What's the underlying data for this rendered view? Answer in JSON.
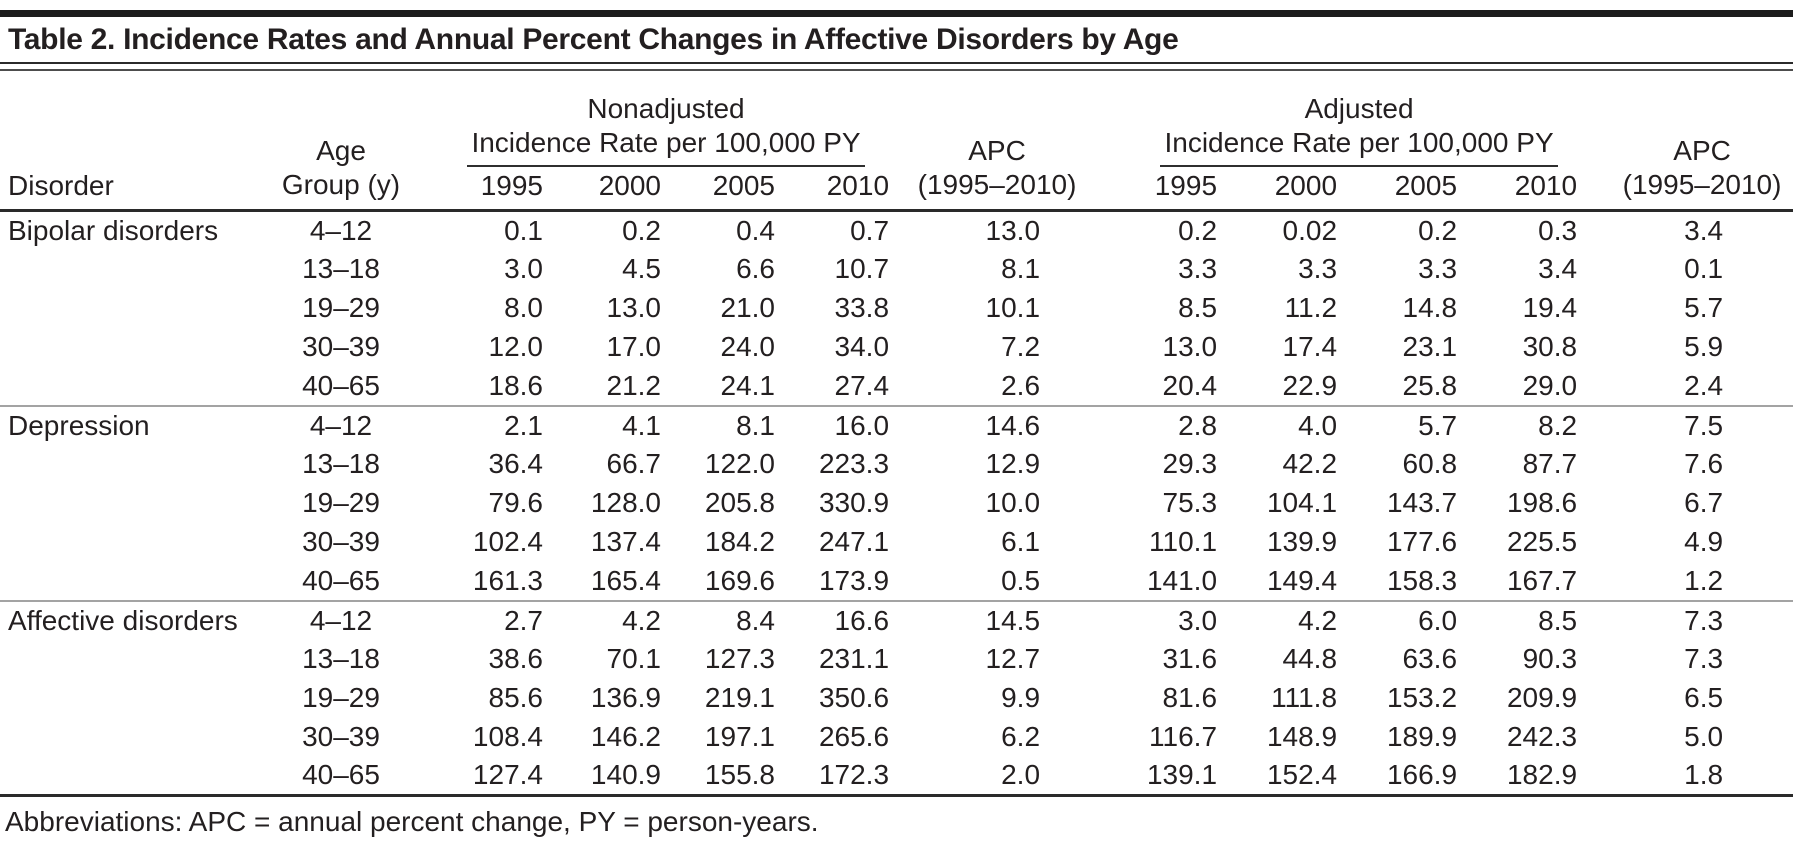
{
  "title": "Table 2. Incidence Rates and Annual Percent Changes in Affective Disorders by Age",
  "table": {
    "col_headers": {
      "disorder": "Disorder",
      "age_group_line1": "Age",
      "age_group_line2": "Group (y)",
      "nonadjusted_group_line1": "Nonadjusted",
      "nonadjusted_group_line2": "Incidence Rate per 100,000 PY",
      "adjusted_group_line1": "Adjusted",
      "adjusted_group_line2": "Incidence Rate per 100,000 PY",
      "apc_line1": "APC",
      "apc_line2": "(1995–2010)",
      "years": [
        "1995",
        "2000",
        "2005",
        "2010"
      ]
    },
    "groups": [
      {
        "disorder": "Bipolar disorders",
        "rows": [
          {
            "age": "4–12",
            "nonadjusted": [
              "0.1",
              "0.2",
              "0.4",
              "0.7"
            ],
            "apc_nonadjusted": "13.0",
            "adjusted": [
              "0.2",
              "0.02",
              "0.2",
              "0.3"
            ],
            "apc_adjusted": "3.4"
          },
          {
            "age": "13–18",
            "nonadjusted": [
              "3.0",
              "4.5",
              "6.6",
              "10.7"
            ],
            "apc_nonadjusted": "8.1",
            "adjusted": [
              "3.3",
              "3.3",
              "3.3",
              "3.4"
            ],
            "apc_adjusted": "0.1"
          },
          {
            "age": "19–29",
            "nonadjusted": [
              "8.0",
              "13.0",
              "21.0",
              "33.8"
            ],
            "apc_nonadjusted": "10.1",
            "adjusted": [
              "8.5",
              "11.2",
              "14.8",
              "19.4"
            ],
            "apc_adjusted": "5.7"
          },
          {
            "age": "30–39",
            "nonadjusted": [
              "12.0",
              "17.0",
              "24.0",
              "34.0"
            ],
            "apc_nonadjusted": "7.2",
            "adjusted": [
              "13.0",
              "17.4",
              "23.1",
              "30.8"
            ],
            "apc_adjusted": "5.9"
          },
          {
            "age": "40–65",
            "nonadjusted": [
              "18.6",
              "21.2",
              "24.1",
              "27.4"
            ],
            "apc_nonadjusted": "2.6",
            "adjusted": [
              "20.4",
              "22.9",
              "25.8",
              "29.0"
            ],
            "apc_adjusted": "2.4"
          }
        ]
      },
      {
        "disorder": "Depression",
        "rows": [
          {
            "age": "4–12",
            "nonadjusted": [
              "2.1",
              "4.1",
              "8.1",
              "16.0"
            ],
            "apc_nonadjusted": "14.6",
            "adjusted": [
              "2.8",
              "4.0",
              "5.7",
              "8.2"
            ],
            "apc_adjusted": "7.5"
          },
          {
            "age": "13–18",
            "nonadjusted": [
              "36.4",
              "66.7",
              "122.0",
              "223.3"
            ],
            "apc_nonadjusted": "12.9",
            "adjusted": [
              "29.3",
              "42.2",
              "60.8",
              "87.7"
            ],
            "apc_adjusted": "7.6"
          },
          {
            "age": "19–29",
            "nonadjusted": [
              "79.6",
              "128.0",
              "205.8",
              "330.9"
            ],
            "apc_nonadjusted": "10.0",
            "adjusted": [
              "75.3",
              "104.1",
              "143.7",
              "198.6"
            ],
            "apc_adjusted": "6.7"
          },
          {
            "age": "30–39",
            "nonadjusted": [
              "102.4",
              "137.4",
              "184.2",
              "247.1"
            ],
            "apc_nonadjusted": "6.1",
            "adjusted": [
              "110.1",
              "139.9",
              "177.6",
              "225.5"
            ],
            "apc_adjusted": "4.9"
          },
          {
            "age": "40–65",
            "nonadjusted": [
              "161.3",
              "165.4",
              "169.6",
              "173.9"
            ],
            "apc_nonadjusted": "0.5",
            "adjusted": [
              "141.0",
              "149.4",
              "158.3",
              "167.7"
            ],
            "apc_adjusted": "1.2"
          }
        ]
      },
      {
        "disorder": "Affective disorders",
        "rows": [
          {
            "age": "4–12",
            "nonadjusted": [
              "2.7",
              "4.2",
              "8.4",
              "16.6"
            ],
            "apc_nonadjusted": "14.5",
            "adjusted": [
              "3.0",
              "4.2",
              "6.0",
              "8.5"
            ],
            "apc_adjusted": "7.3"
          },
          {
            "age": "13–18",
            "nonadjusted": [
              "38.6",
              "70.1",
              "127.3",
              "231.1"
            ],
            "apc_nonadjusted": "12.7",
            "adjusted": [
              "31.6",
              "44.8",
              "63.6",
              "90.3"
            ],
            "apc_adjusted": "7.3"
          },
          {
            "age": "19–29",
            "nonadjusted": [
              "85.6",
              "136.9",
              "219.1",
              "350.6"
            ],
            "apc_nonadjusted": "9.9",
            "adjusted": [
              "81.6",
              "111.8",
              "153.2",
              "209.9"
            ],
            "apc_adjusted": "6.5"
          },
          {
            "age": "30–39",
            "nonadjusted": [
              "108.4",
              "146.2",
              "197.1",
              "265.6"
            ],
            "apc_nonadjusted": "6.2",
            "adjusted": [
              "116.7",
              "148.9",
              "189.9",
              "242.3"
            ],
            "apc_adjusted": "5.0"
          },
          {
            "age": "40–65",
            "nonadjusted": [
              "127.4",
              "140.9",
              "155.8",
              "172.3"
            ],
            "apc_nonadjusted": "2.0",
            "adjusted": [
              "139.1",
              "152.4",
              "166.9",
              "182.9"
            ],
            "apc_adjusted": "1.8"
          }
        ]
      }
    ],
    "footnote": "Abbreviations: APC = annual percent change, PY = person-years."
  }
}
